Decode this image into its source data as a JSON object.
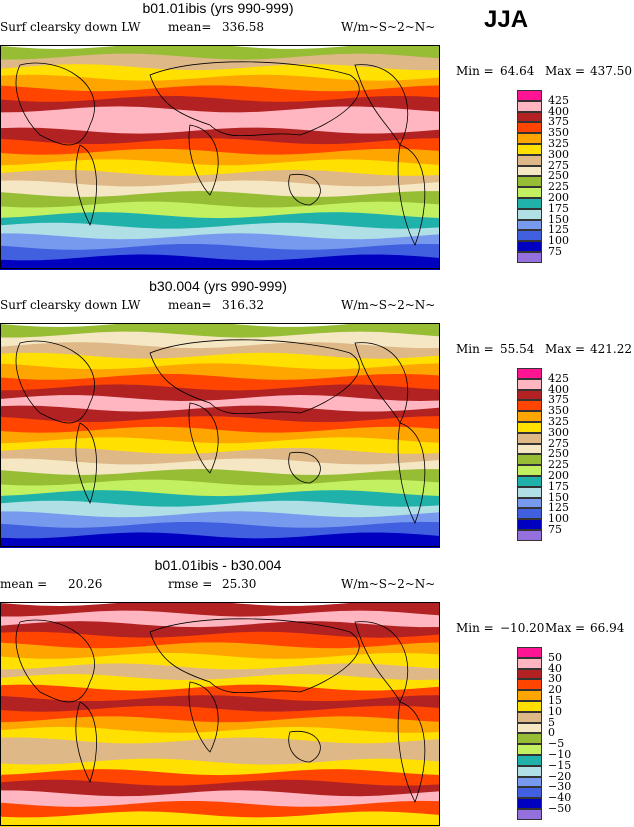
{
  "season": "JJA",
  "chart_data": [
    {
      "type": "heatmap",
      "title": "b01.01ibis (yrs 990-999)",
      "left_label": "Surf clearsky down LW",
      "mean_label": "mean=",
      "mean": "336.58",
      "units": "W/m~S~2~N~",
      "min_label": "Min =",
      "min": "64.64",
      "max_label": "Max =",
      "max": "437.50",
      "levels": [
        "425",
        "400",
        "375",
        "350",
        "325",
        "300",
        "275",
        "250",
        "225",
        "200",
        "175",
        "150",
        "125",
        "100",
        "75"
      ],
      "colors": [
        "#ff1493",
        "#ffb6c1",
        "#b22222",
        "#ff4500",
        "#ffa500",
        "#ffe000",
        "#deb887",
        "#f5e6c4",
        "#96bd34",
        "#c2f060",
        "#20b2aa",
        "#b0e0e6",
        "#7799ee",
        "#4060e0",
        "#0000c0",
        "#9370db"
      ],
      "zonal_profile_north_to_south": [
        225,
        275,
        300,
        325,
        350,
        375,
        400,
        400,
        375,
        350,
        325,
        300,
        275,
        250,
        225,
        200,
        175,
        150,
        125,
        100,
        75
      ]
    },
    {
      "type": "heatmap",
      "title": "b30.004 (yrs 990-999)",
      "left_label": "Surf clearsky down LW",
      "mean_label": "mean=",
      "mean": "316.32",
      "units": "W/m~S~2~N~",
      "min_label": "Min =",
      "min": "55.54",
      "max_label": "Max =",
      "max": "421.22",
      "levels": [
        "425",
        "400",
        "375",
        "350",
        "325",
        "300",
        "275",
        "250",
        "225",
        "200",
        "175",
        "150",
        "125",
        "100",
        "75"
      ],
      "colors": [
        "#ff1493",
        "#ffb6c1",
        "#b22222",
        "#ff4500",
        "#ffa500",
        "#ffe000",
        "#deb887",
        "#f5e6c4",
        "#96bd34",
        "#c2f060",
        "#20b2aa",
        "#b0e0e6",
        "#7799ee",
        "#4060e0",
        "#0000c0",
        "#9370db"
      ],
      "zonal_profile_north_to_south": [
        225,
        250,
        275,
        300,
        325,
        350,
        375,
        400,
        375,
        350,
        325,
        300,
        275,
        250,
        225,
        200,
        175,
        150,
        125,
        100,
        75
      ]
    },
    {
      "type": "heatmap",
      "title": "b01.01ibis - b30.004",
      "left_label": "",
      "mean_label": "mean =",
      "mean": "20.26",
      "rmse_label": "rmse =",
      "rmse": "25.30",
      "units": "W/m~S~2~N~",
      "min_label": "Min =",
      "min": "−10.20",
      "max_label": "Max =",
      "max": "66.94",
      "levels": [
        "50",
        "40",
        "30",
        "20",
        "15",
        "10",
        "5",
        "0",
        "−5",
        "−10",
        "−15",
        "−20",
        "−30",
        "−40",
        "−50"
      ],
      "colors": [
        "#ff1493",
        "#ffb6c1",
        "#b22222",
        "#ff4500",
        "#ffa500",
        "#ffe000",
        "#deb887",
        "#f5e6c4",
        "#96bd34",
        "#c2f060",
        "#20b2aa",
        "#b0e0e6",
        "#7799ee",
        "#4060e0",
        "#0000c0",
        "#9370db"
      ],
      "zonal_profile_north_to_south": [
        30,
        40,
        30,
        20,
        15,
        10,
        5,
        10,
        20,
        30,
        20,
        15,
        10,
        5,
        5,
        10,
        20,
        30,
        40,
        20,
        10
      ]
    }
  ]
}
